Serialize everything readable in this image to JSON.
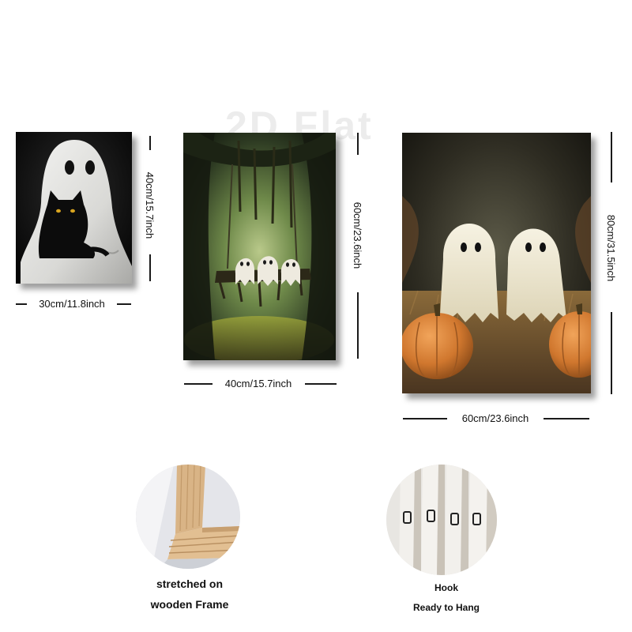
{
  "watermark": "2D Flat",
  "panels": [
    {
      "id": "ghost-with-black-cat",
      "width_label": "30cm/11.8inch",
      "height_label": "40cm/15.7inch"
    },
    {
      "id": "ghosts-on-swing-forest",
      "width_label": "40cm/15.7inch",
      "height_label": "60cm/23.6inch"
    },
    {
      "id": "ghosts-with-pumpkins",
      "width_label": "60cm/23.6inch",
      "height_label": "80cm/31.5inch"
    }
  ],
  "details": {
    "frame": {
      "caption_line1": "stretched on",
      "caption_line2": "wooden Frame"
    },
    "hook": {
      "caption_line1": "Hook",
      "caption_line2": "Ready to Hang"
    }
  }
}
